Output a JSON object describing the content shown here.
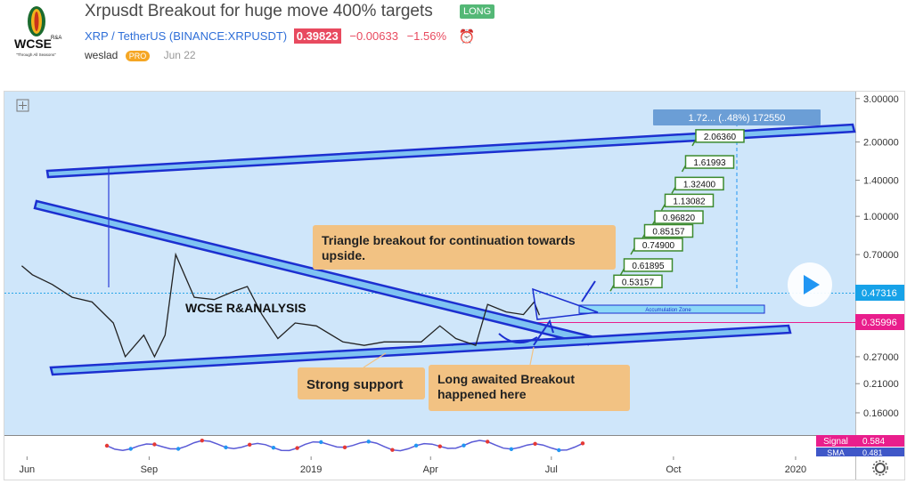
{
  "header": {
    "logo_text": "WCSE",
    "logo_sub": "R&A",
    "logo_tagline": "\"Through All Seasons\"",
    "title": "Xrpusdt Breakout for huge move 400% targets",
    "badge": "LONG",
    "symbol_pair": "XRP / TetherUS",
    "exchange": "(BINANCE:XRPUSDT)",
    "price": "0.39823",
    "change": "−0.00633",
    "change_pct": "−1.56%",
    "username": "weslad",
    "user_badge": "PRO",
    "date": "Jun 22"
  },
  "colors": {
    "chart_bg": "#cfe6fa",
    "trendline": "#1c2fd0",
    "trend_fill": "#7fc3f2",
    "callout": "#f2c283",
    "target_border": "#3c8a2e",
    "price_label": "#17a2e8",
    "support_label": "#e91e8c"
  },
  "chart_data": {
    "type": "line",
    "title": "",
    "xlabel": "",
    "ylabel": "",
    "y_scale": "log",
    "ylim": [
      0.13,
      3.2
    ],
    "x_range": [
      "2018-05-15",
      "2020-02-15"
    ],
    "x_ticks": [
      {
        "label": "Jun",
        "date": "2018-06-01"
      },
      {
        "label": "Sep",
        "date": "2018-09-01"
      },
      {
        "label": "2019",
        "date": "2019-01-01"
      },
      {
        "label": "Apr",
        "date": "2019-04-01"
      },
      {
        "label": "Jul",
        "date": "2019-07-01"
      },
      {
        "label": "Oct",
        "date": "2019-10-01"
      },
      {
        "label": "2020",
        "date": "2020-01-01"
      }
    ],
    "y_ticks": [
      "3.00000",
      "2.00000",
      "1.40000",
      "1.00000",
      "0.70000",
      "0.27000",
      "0.21000",
      "0.16000"
    ],
    "price_series": {
      "name": "XRPUSDT",
      "x": [
        "2018-05-28",
        "2018-06-05",
        "2018-06-20",
        "2018-07-05",
        "2018-07-20",
        "2018-08-05",
        "2018-08-14",
        "2018-08-28",
        "2018-09-05",
        "2018-09-13",
        "2018-09-21",
        "2018-10-05",
        "2018-10-20",
        "2018-11-05",
        "2018-11-14",
        "2018-11-25",
        "2018-12-07",
        "2018-12-20",
        "2019-01-05",
        "2019-01-25",
        "2019-02-10",
        "2019-02-25",
        "2019-03-10",
        "2019-03-25",
        "2019-04-08",
        "2019-04-20",
        "2019-05-05",
        "2019-05-14",
        "2019-05-28",
        "2019-06-10",
        "2019-06-18",
        "2019-06-22"
      ],
      "y": [
        0.63,
        0.58,
        0.53,
        0.47,
        0.45,
        0.37,
        0.27,
        0.33,
        0.27,
        0.33,
        0.7,
        0.47,
        0.46,
        0.5,
        0.52,
        0.4,
        0.32,
        0.37,
        0.36,
        0.31,
        0.3,
        0.31,
        0.31,
        0.31,
        0.36,
        0.32,
        0.3,
        0.44,
        0.41,
        0.4,
        0.45,
        0.398
      ]
    },
    "current_price": 0.47316,
    "current_price_label": "0.47316",
    "support_price": 0.35996,
    "support_label": "0.35996",
    "targets": [
      "2.06360",
      "1.61993",
      "1.32400",
      "1.13082",
      "0.96820",
      "0.85157",
      "0.74900",
      "0.61895",
      "0.53157"
    ],
    "measure_label": "1.72... (..48%) 172550",
    "annotations": {
      "triangle": "Triangle breakout for continuation towards upside.",
      "support": "Strong support",
      "breakout": "Long awaited Breakout happened here",
      "watermark": "WCSE R&ANALYSIS",
      "zone": "Accumulation Zone"
    },
    "indicator": {
      "signal_label": "Signal",
      "signal_value": "0.584",
      "sma_label": "SMA",
      "sma_value": "0.481"
    }
  }
}
